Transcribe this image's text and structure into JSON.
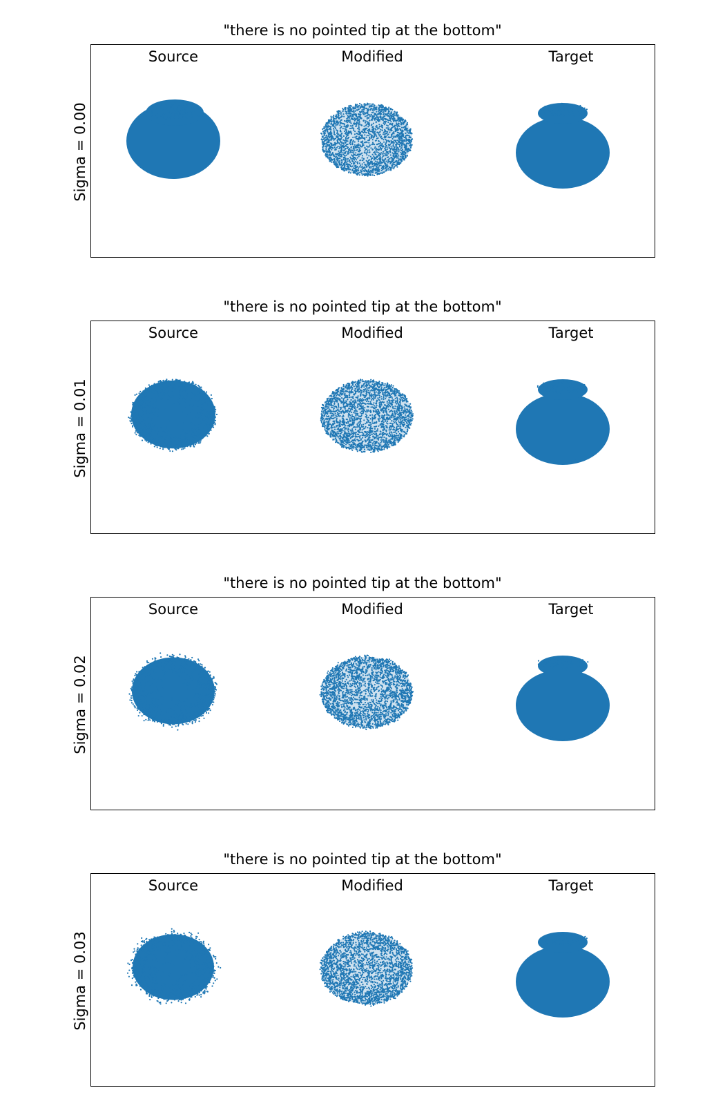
{
  "figure": {
    "columns": [
      "Source",
      "Modified",
      "Target"
    ],
    "panels": [
      {
        "title": "\"there is no pointed tip at the bottom\"",
        "row_label": "Sigma = 0.00",
        "sigma": 0.0
      },
      {
        "title": "\"there is no pointed tip at the bottom\"",
        "row_label": "Sigma = 0.01",
        "sigma": 0.01
      },
      {
        "title": "\"there is no pointed tip at the bottom\"",
        "row_label": "Sigma = 0.02",
        "sigma": 0.02
      },
      {
        "title": "\"there is no pointed tip at the bottom\"",
        "row_label": "Sigma = 0.03",
        "sigma": 0.03
      }
    ]
  },
  "colors": {
    "points": "#1f77b4",
    "axes": "#000000",
    "background": "#ffffff"
  },
  "chart_data": {
    "type": "scatter",
    "layout": "4 rows x 3 columns of point-cloud scatter plots",
    "rows": [
      "Sigma = 0.00",
      "Sigma = 0.01",
      "Sigma = 0.02",
      "Sigma = 0.03"
    ],
    "columns": [
      "Source",
      "Modified",
      "Target"
    ],
    "shapes": {
      "Source": "ellipsoid point cloud with a small cap on top",
      "Modified": "rounded point cloud with a sparse interior",
      "Target": "vase shape: small neck on top, wide rounded body below"
    },
    "axes_visible": false,
    "grid": false,
    "legend": false
  }
}
